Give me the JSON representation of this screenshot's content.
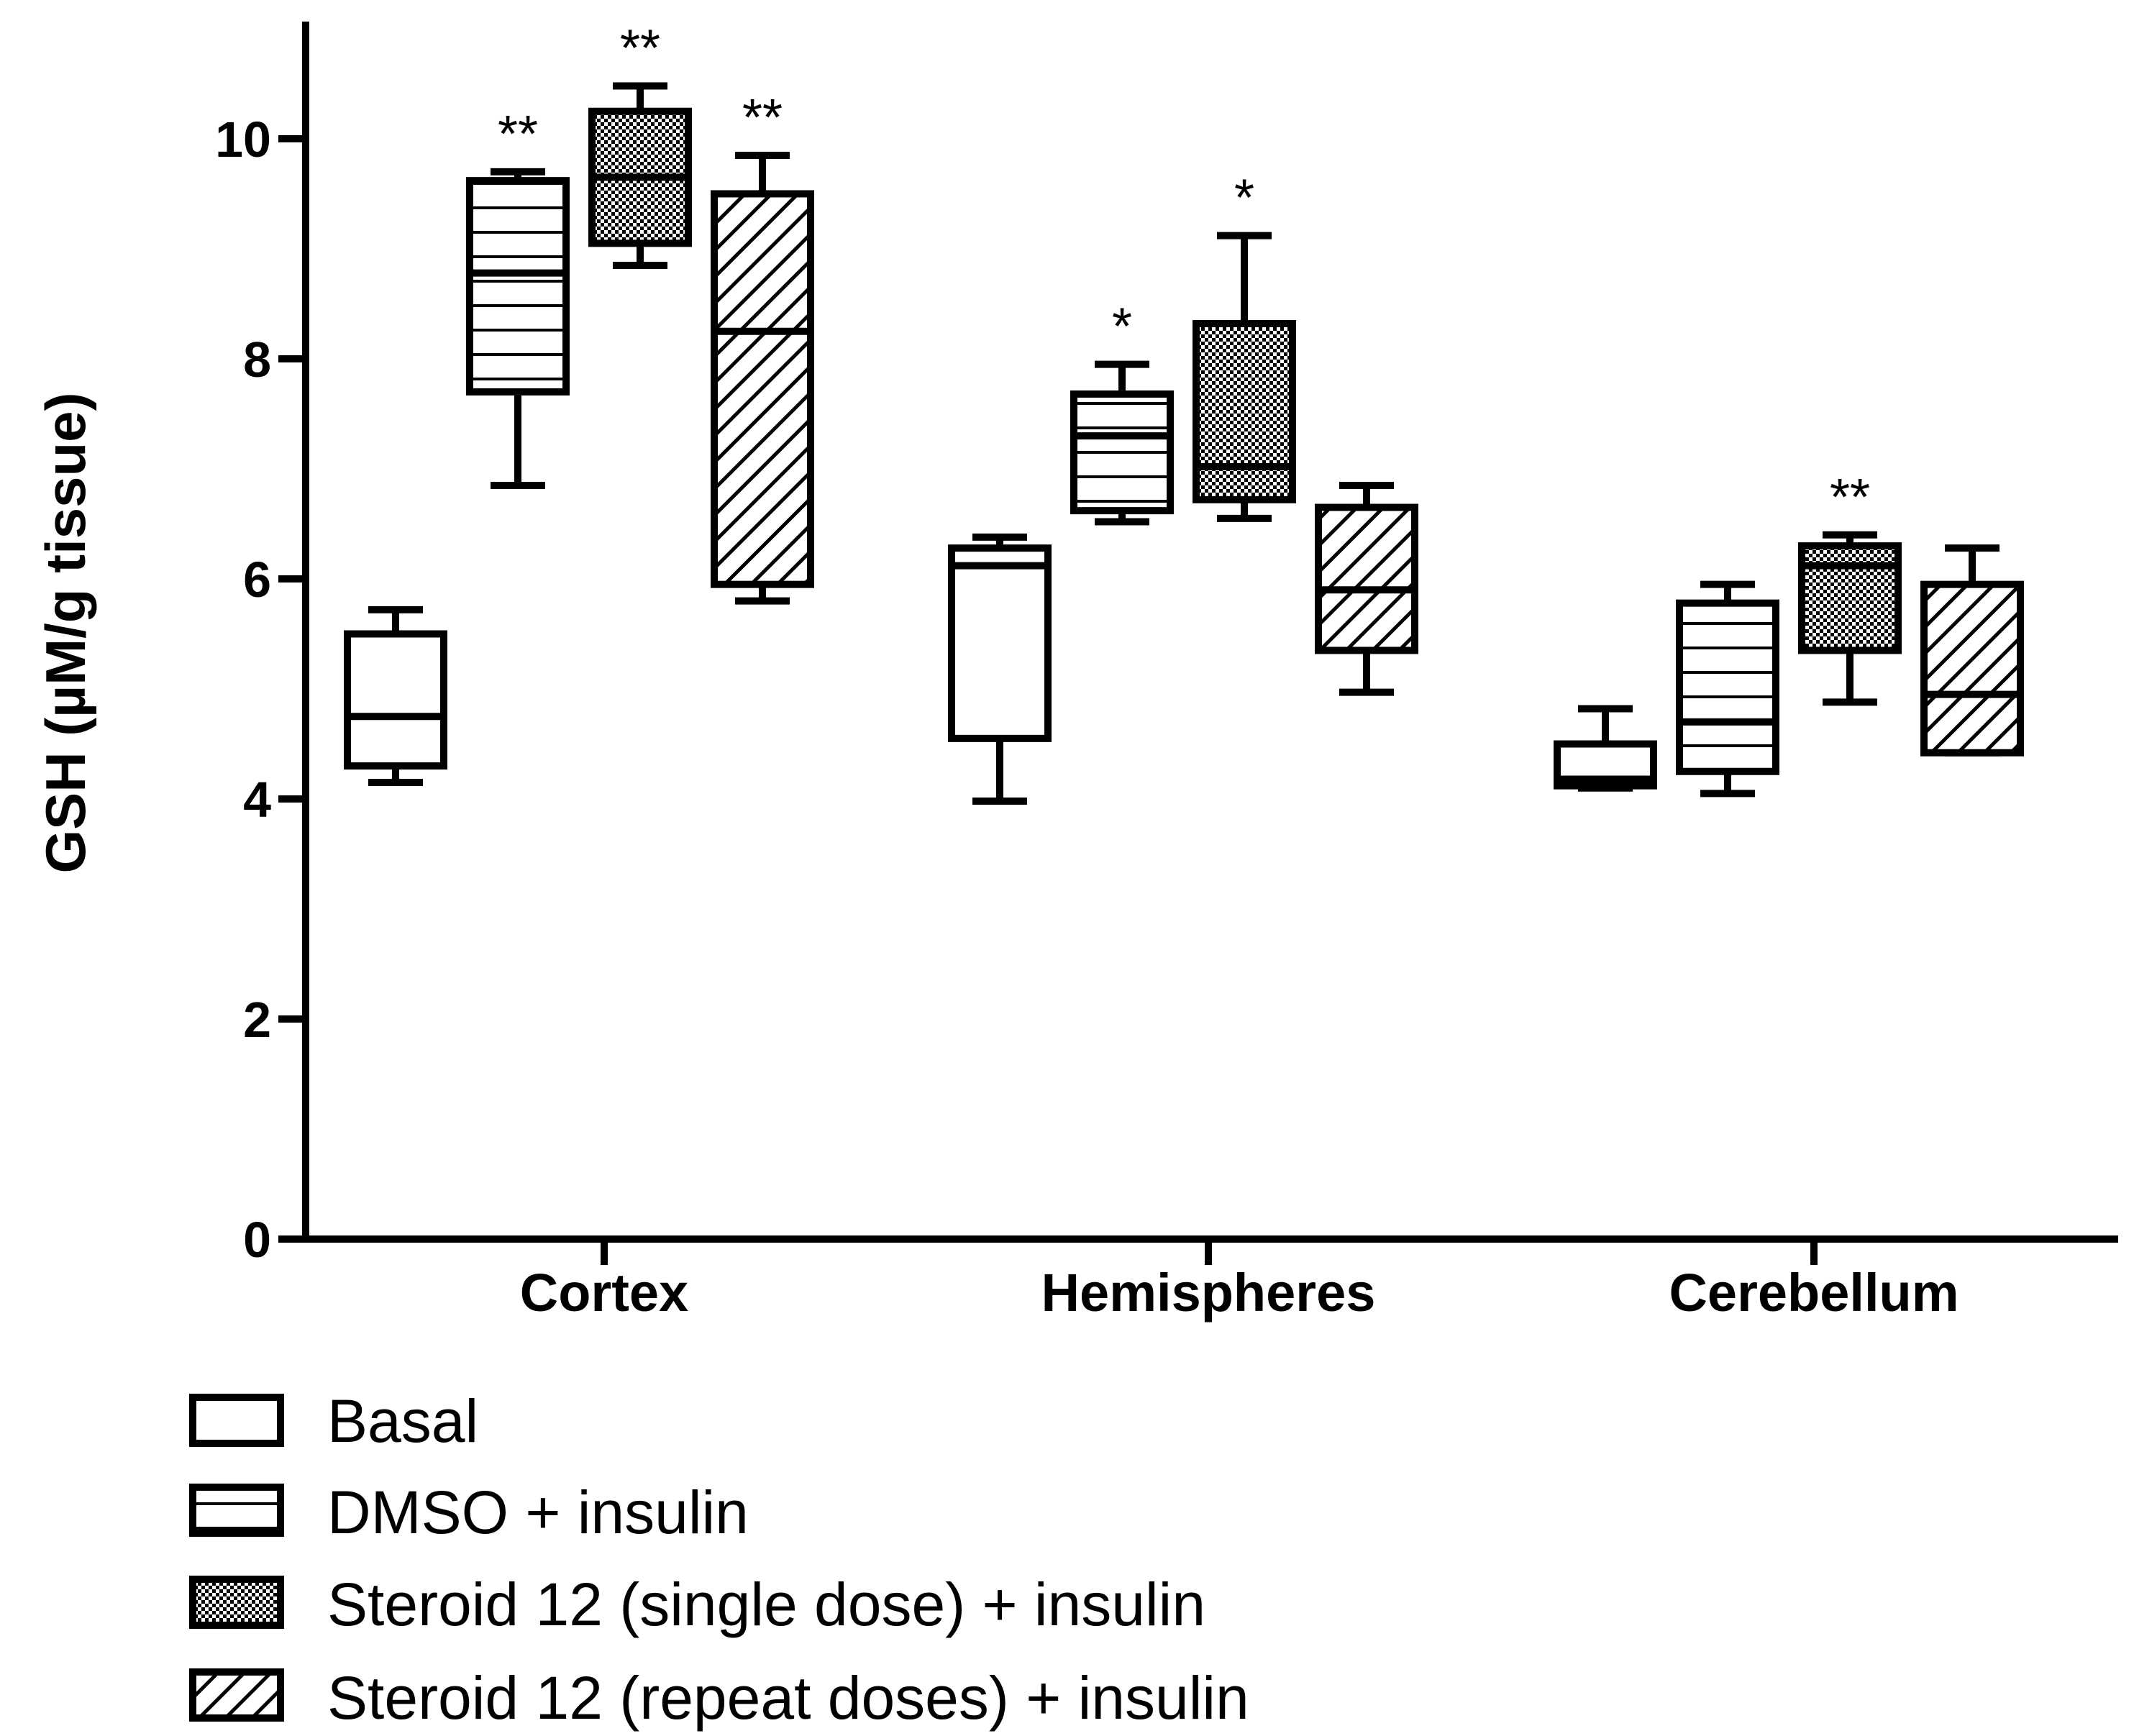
{
  "chart_data": {
    "type": "box",
    "ylabel": "GSH (µM/g tissue)",
    "xlabel": "",
    "ylim": [
      0,
      11
    ],
    "yticks": [
      0,
      2,
      4,
      6,
      8,
      10
    ],
    "categories": [
      "Cortex",
      "Hemispheres",
      "Cerebellum"
    ],
    "legend_position": "bottom-left",
    "series": [
      {
        "name": "Basal",
        "pattern": "none",
        "boxes": [
          {
            "min": 4.15,
            "q1": 4.3,
            "median": 4.75,
            "q3": 5.5,
            "max": 5.72,
            "sig": ""
          },
          {
            "min": 3.98,
            "q1": 4.55,
            "median": 6.12,
            "q3": 6.28,
            "max": 6.38,
            "sig": ""
          },
          {
            "min": 4.1,
            "q1": 4.12,
            "median": 4.18,
            "q3": 4.5,
            "max": 4.82,
            "sig": ""
          }
        ]
      },
      {
        "name": "DMSO + insulin",
        "pattern": "horizontal-lines",
        "boxes": [
          {
            "min": 6.85,
            "q1": 7.7,
            "median": 8.78,
            "q3": 9.62,
            "max": 9.7,
            "sig": "**"
          },
          {
            "min": 6.52,
            "q1": 6.62,
            "median": 7.3,
            "q3": 7.68,
            "max": 7.95,
            "sig": "*"
          },
          {
            "min": 4.05,
            "q1": 4.25,
            "median": 4.7,
            "q3": 5.78,
            "max": 5.95,
            "sig": ""
          }
        ]
      },
      {
        "name": "Steroid 12 (single dose) + insulin",
        "pattern": "checker",
        "boxes": [
          {
            "min": 8.85,
            "q1": 9.05,
            "median": 9.65,
            "q3": 10.25,
            "max": 10.48,
            "sig": "**"
          },
          {
            "min": 6.55,
            "q1": 6.72,
            "median": 7.02,
            "q3": 8.32,
            "max": 9.12,
            "sig": "*"
          },
          {
            "min": 4.88,
            "q1": 5.35,
            "median": 6.12,
            "q3": 6.3,
            "max": 6.4,
            "sig": "**"
          }
        ]
      },
      {
        "name": "Steroid 12 (repeat doses) + insulin",
        "pattern": "diagonal-lines",
        "boxes": [
          {
            "min": 5.8,
            "q1": 5.95,
            "median": 8.25,
            "q3": 9.5,
            "max": 9.85,
            "sig": "**"
          },
          {
            "min": 4.97,
            "q1": 5.35,
            "median": 5.9,
            "q3": 6.65,
            "max": 6.85,
            "sig": ""
          },
          {
            "min": 4.42,
            "q1": 4.42,
            "median": 4.95,
            "q3": 5.95,
            "max": 6.28,
            "sig": ""
          }
        ]
      }
    ]
  },
  "colors": {
    "ink": "#000000",
    "background": "#ffffff"
  }
}
